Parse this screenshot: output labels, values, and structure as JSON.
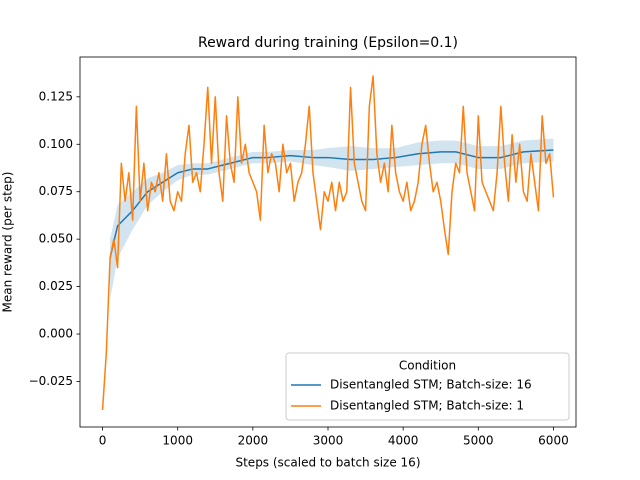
{
  "chart_data": {
    "type": "line",
    "title": "Reward during training (Epsilon=0.1)",
    "xlabel": "Steps (scaled to batch size 16)",
    "ylabel": "Mean reward (per step)",
    "xlim": [
      -300,
      6300
    ],
    "ylim": [
      -0.049,
      0.146
    ],
    "xticks": [
      0,
      1000,
      2000,
      3000,
      4000,
      5000,
      6000
    ],
    "yticks": [
      {
        "value": -0.025,
        "label": "−0.025"
      },
      {
        "value": 0,
        "label": "0.000"
      },
      0.025,
      {
        "value": 0.05,
        "label": "0.050"
      },
      0.075,
      {
        "value": 0.1,
        "label": "0.100"
      },
      0.125
    ],
    "legend_title": "Condition",
    "legend": "lower right",
    "series": [
      {
        "name": "Disentangled STM; Batch-size: 16",
        "color": "#1f77b4",
        "x": [
          100,
          200,
          400,
          600,
          800,
          1000,
          1200,
          1400,
          1600,
          1800,
          2000,
          2200,
          2500,
          2800,
          3000,
          3300,
          3600,
          3900,
          4200,
          4500,
          4700,
          5000,
          5300,
          5600,
          6000
        ],
        "values": [
          0.04,
          0.057,
          0.065,
          0.075,
          0.08,
          0.085,
          0.087,
          0.087,
          0.089,
          0.091,
          0.093,
          0.093,
          0.094,
          0.093,
          0.093,
          0.092,
          0.092,
          0.093,
          0.095,
          0.096,
          0.096,
          0.093,
          0.093,
          0.096,
          0.097
        ],
        "ci_lower": [
          0.018,
          0.04,
          0.055,
          0.068,
          0.075,
          0.081,
          0.084,
          0.084,
          0.086,
          0.088,
          0.09,
          0.09,
          0.091,
          0.089,
          0.088,
          0.086,
          0.087,
          0.088,
          0.089,
          0.09,
          0.09,
          0.087,
          0.087,
          0.09,
          0.091
        ],
        "ci_upper": [
          0.05,
          0.068,
          0.075,
          0.082,
          0.085,
          0.089,
          0.09,
          0.09,
          0.092,
          0.094,
          0.096,
          0.096,
          0.097,
          0.097,
          0.098,
          0.099,
          0.098,
          0.098,
          0.101,
          0.102,
          0.102,
          0.099,
          0.099,
          0.102,
          0.103
        ]
      },
      {
        "name": "Disentangled STM; Batch-size: 1",
        "color": "#ff7f0e",
        "x": [
          0,
          50,
          100,
          150,
          200,
          250,
          300,
          350,
          400,
          450,
          500,
          550,
          600,
          650,
          700,
          750,
          800,
          850,
          900,
          950,
          1000,
          1050,
          1100,
          1150,
          1200,
          1250,
          1300,
          1350,
          1400,
          1450,
          1500,
          1550,
          1600,
          1650,
          1700,
          1750,
          1800,
          1850,
          1900,
          1950,
          2000,
          2050,
          2100,
          2150,
          2200,
          2250,
          2300,
          2350,
          2400,
          2450,
          2500,
          2550,
          2600,
          2650,
          2700,
          2750,
          2800,
          2850,
          2900,
          2950,
          3000,
          3050,
          3100,
          3150,
          3200,
          3250,
          3300,
          3350,
          3400,
          3450,
          3500,
          3550,
          3600,
          3650,
          3700,
          3750,
          3800,
          3850,
          3900,
          3950,
          4000,
          4050,
          4100,
          4150,
          4200,
          4250,
          4300,
          4350,
          4400,
          4450,
          4500,
          4550,
          4600,
          4650,
          4700,
          4750,
          4800,
          4850,
          4900,
          4950,
          5000,
          5050,
          5100,
          5150,
          5200,
          5250,
          5300,
          5350,
          5400,
          5450,
          5500,
          5550,
          5600,
          5650,
          5700,
          5750,
          5800,
          5850,
          5900,
          5950,
          6000
        ],
        "values": [
          -0.04,
          -0.01,
          0.04,
          0.05,
          0.035,
          0.09,
          0.07,
          0.085,
          0.06,
          0.12,
          0.07,
          0.09,
          0.065,
          0.08,
          0.075,
          0.085,
          0.07,
          0.095,
          0.07,
          0.065,
          0.075,
          0.07,
          0.095,
          0.11,
          0.08,
          0.085,
          0.075,
          0.1,
          0.13,
          0.09,
          0.125,
          0.085,
          0.07,
          0.115,
          0.09,
          0.08,
          0.125,
          0.09,
          0.1,
          0.085,
          0.08,
          0.075,
          0.06,
          0.11,
          0.085,
          0.095,
          0.09,
          0.075,
          0.1,
          0.085,
          0.09,
          0.07,
          0.08,
          0.085,
          0.1,
          0.12,
          0.085,
          0.07,
          0.055,
          0.075,
          0.07,
          0.08,
          0.065,
          0.08,
          0.07,
          0.075,
          0.13,
          0.09,
          0.08,
          0.07,
          0.065,
          0.12,
          0.136,
          0.095,
          0.08,
          0.09,
          0.075,
          0.11,
          0.085,
          0.075,
          0.07,
          0.08,
          0.065,
          0.07,
          0.08,
          0.1,
          0.11,
          0.09,
          0.075,
          0.08,
          0.07,
          0.055,
          0.042,
          0.075,
          0.09,
          0.085,
          0.12,
          0.085,
          0.075,
          0.065,
          0.115,
          0.08,
          0.075,
          0.07,
          0.065,
          0.085,
          0.12,
          0.09,
          0.07,
          0.105,
          0.08,
          0.1,
          0.075,
          0.07,
          0.095,
          0.08,
          0.065,
          0.115,
          0.09,
          0.095,
          0.072
        ]
      }
    ]
  }
}
